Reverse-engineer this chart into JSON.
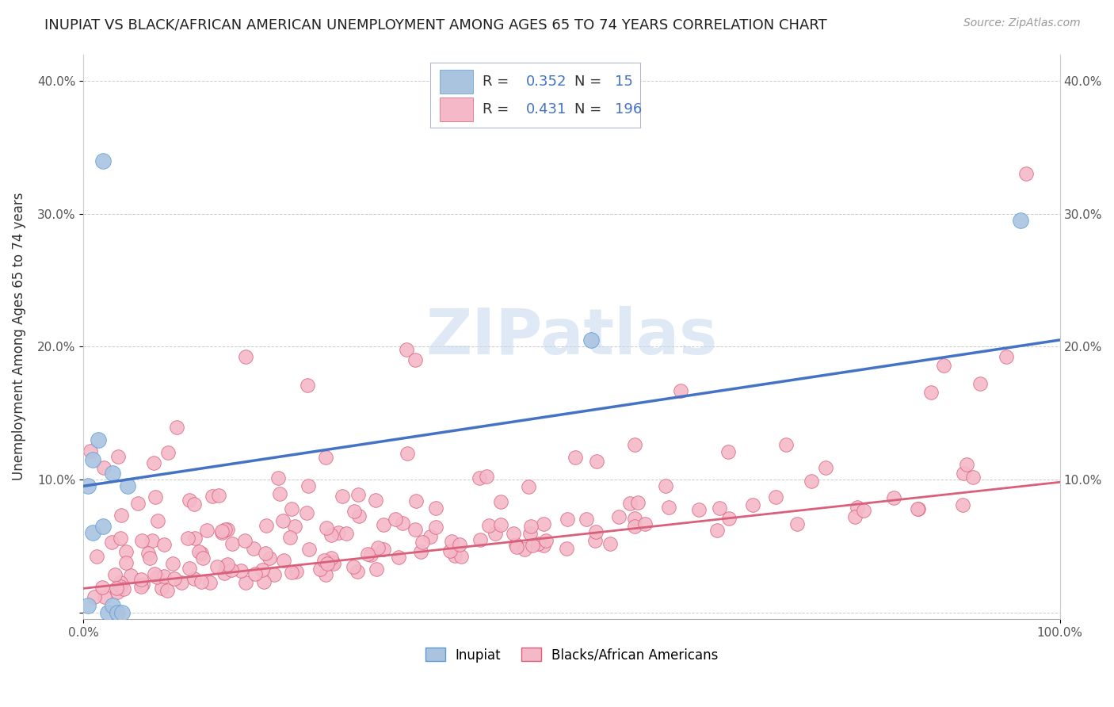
{
  "title": "INUPIAT VS BLACK/AFRICAN AMERICAN UNEMPLOYMENT AMONG AGES 65 TO 74 YEARS CORRELATION CHART",
  "source": "Source: ZipAtlas.com",
  "ylabel": "Unemployment Among Ages 65 to 74 years",
  "xlim": [
    0,
    1.0
  ],
  "ylim": [
    -0.005,
    0.42
  ],
  "yticks": [
    0.0,
    0.1,
    0.2,
    0.3,
    0.4
  ],
  "ytick_labels": [
    "",
    "10.0%",
    "20.0%",
    "30.0%",
    "40.0%"
  ],
  "inupiat_color": "#aac4e0",
  "inupiat_edge_color": "#5b9bd5",
  "pink_color": "#f4b8c8",
  "pink_edge_color": "#d9607a",
  "blue_line_color": "#4472c4",
  "pink_line_color": "#d9607a",
  "inupiat_R": 0.352,
  "inupiat_N": 15,
  "pink_R": 0.431,
  "pink_N": 196,
  "watermark": "ZIPatlas",
  "legend_label_inupiat": "Inupiat",
  "legend_label_pink": "Blacks/African Americans",
  "title_fontsize": 13,
  "axis_label_fontsize": 12,
  "tick_fontsize": 11,
  "blue_line_start_y": 0.095,
  "blue_line_end_y": 0.205,
  "pink_line_start_y": 0.018,
  "pink_line_end_y": 0.098
}
